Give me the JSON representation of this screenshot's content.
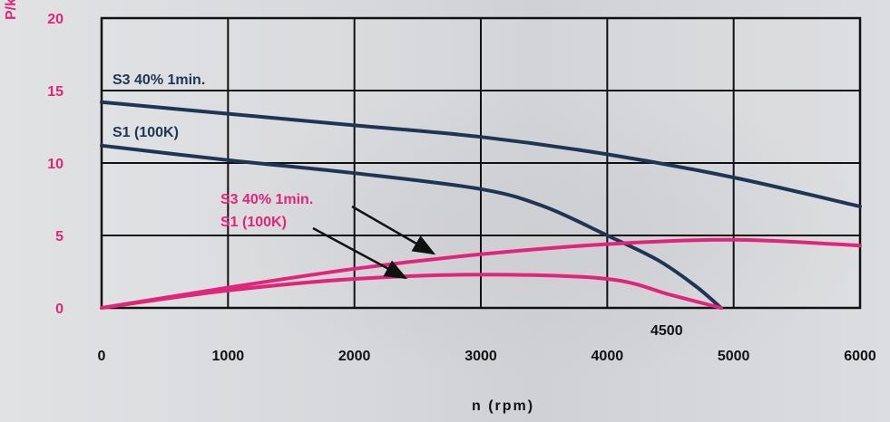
{
  "chart_data": {
    "type": "line",
    "xlabel": "n (rpm)",
    "ylabel": "P/kw",
    "xlim": [
      0,
      6000
    ],
    "ylim": [
      0,
      20
    ],
    "x_ticks": [
      "0",
      "1000",
      "2000",
      "3000",
      "4000",
      "5000",
      "6000"
    ],
    "y_ticks": [
      "0",
      "5",
      "10",
      "15",
      "20"
    ],
    "grid": true,
    "colors": {
      "power": "#1f3555",
      "torque": "#e0257a",
      "axis_text": "#e0257a",
      "grid": "#111111"
    },
    "series": [
      {
        "name": "S3 40% 1min.",
        "color": "#1f3555",
        "x": [
          0,
          1000,
          2000,
          3000,
          4000,
          5000,
          6000
        ],
        "y": [
          14.2,
          13.4,
          12.6,
          11.8,
          10.6,
          9.0,
          7.0
        ]
      },
      {
        "name": "S1 (100K)",
        "color": "#1f3555",
        "x": [
          0,
          1000,
          2000,
          3000,
          3500,
          4000,
          4400,
          4700,
          4900
        ],
        "y": [
          11.2,
          10.2,
          9.3,
          8.2,
          7.0,
          5.0,
          3.3,
          1.5,
          0
        ]
      },
      {
        "name": "S3 40% 1min.",
        "color": "#e0257a",
        "x": [
          0,
          1000,
          2000,
          3000,
          4000,
          5000,
          6000
        ],
        "y": [
          0,
          1.4,
          2.7,
          3.7,
          4.4,
          4.7,
          4.3
        ]
      },
      {
        "name": "S1 (100K)",
        "color": "#e0257a",
        "x": [
          0,
          1000,
          2000,
          3000,
          4000,
          4500,
          4900
        ],
        "y": [
          0,
          1.2,
          2.0,
          2.3,
          2.0,
          0.9,
          0
        ]
      }
    ],
    "annotations": [
      {
        "text": "4500",
        "x": 4500
      }
    ]
  },
  "labels": {
    "s3_navy": "S3 40% 1min.",
    "s1_navy": "S1 (100K)",
    "s3_pink": "S3 40% 1min.",
    "s1_pink": "S1 (100K)",
    "marker_4500": "4500"
  }
}
